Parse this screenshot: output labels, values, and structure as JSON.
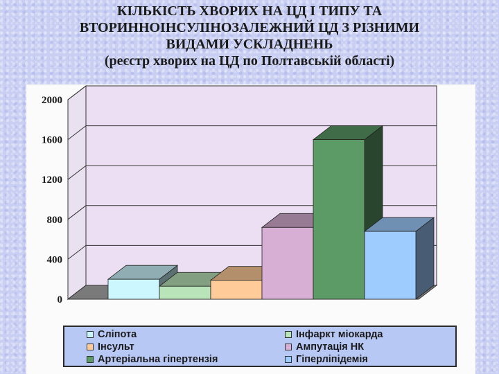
{
  "chart_data": {
    "type": "bar",
    "title_lines": [
      "КІЛЬКІСТЬ ХВОРИХ НА ЦД І ТИПУ ТА",
      "ВТОРИННОІНСУЛІНОЗАЛЕЖНИЙ ЦД З РІЗНИМИ",
      "ВИДАМИ УСКЛАДНЕНЬ"
    ],
    "subtitle": "(реєстр хворих на ЦД по Полтавській області)",
    "ylim": [
      0,
      2000
    ],
    "yticks": [
      "2000",
      "1600",
      "1200",
      "800",
      "400",
      "0"
    ],
    "ytick_values": [
      2000,
      1600,
      1200,
      800,
      400,
      0
    ],
    "grid": true,
    "three_d": true,
    "legend_position": "bottom",
    "series": [
      {
        "name": "Сліпота",
        "value": 200,
        "color": "#ccf7ff"
      },
      {
        "name": "Інфаркт міокарда",
        "value": 130,
        "color": "#b9e3b8"
      },
      {
        "name": "Інсульт",
        "value": 190,
        "color": "#ffcc99"
      },
      {
        "name": "Ампутація НК",
        "value": 720,
        "color": "#d7afd4"
      },
      {
        "name": "Артеріальна гіпертензія",
        "value": 1600,
        "color": "#5c9a66"
      },
      {
        "name": "Гіперліпідемія",
        "value": 680,
        "color": "#9fccff"
      }
    ]
  }
}
